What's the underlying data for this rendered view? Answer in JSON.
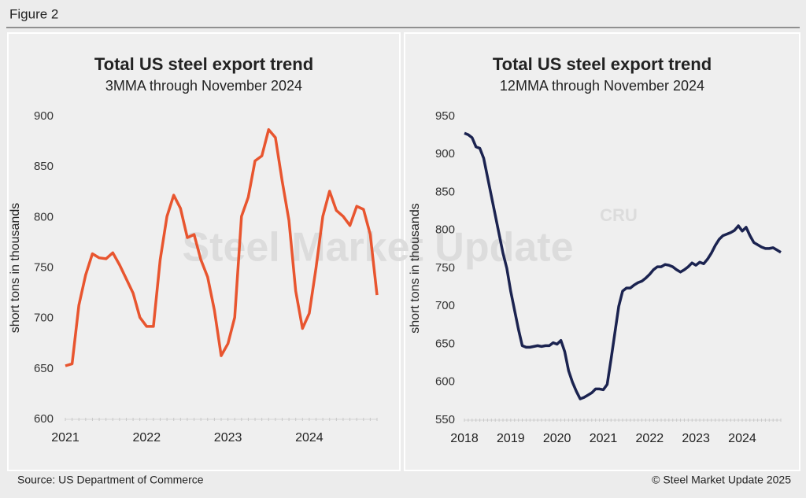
{
  "figure_label": "Figure 2",
  "source": "Source: US Department of Commerce",
  "copyright": "© Steel Market Update 2025",
  "chart_data": [
    {
      "type": "line",
      "title": "Total US steel export trend",
      "subtitle": "3MMA through November 2024",
      "y_label": "short tons in thousands",
      "watermark": "Steel Market Update",
      "color": "#e8552f",
      "categories": [
        "2021",
        null,
        null,
        null,
        null,
        null,
        null,
        null,
        null,
        null,
        null,
        null,
        "2022",
        null,
        null,
        null,
        null,
        null,
        null,
        null,
        null,
        null,
        null,
        null,
        "2023",
        null,
        null,
        null,
        null,
        null,
        null,
        null,
        null,
        null,
        null,
        null,
        "2024",
        null,
        null,
        null,
        null,
        null,
        null,
        null,
        null,
        null,
        null
      ],
      "values": [
        653,
        655,
        713,
        743,
        764,
        760,
        759,
        765,
        753,
        739,
        725,
        701,
        692,
        692,
        758,
        801,
        822,
        809,
        780,
        783,
        758,
        741,
        708,
        663,
        675,
        701,
        801,
        820,
        856,
        861,
        887,
        879,
        836,
        797,
        727,
        690,
        705,
        750,
        801,
        826,
        807,
        801,
        792,
        811,
        808,
        783,
        723
      ],
      "ylim": [
        600,
        900
      ],
      "yticks": [
        600,
        650,
        700,
        750,
        800,
        850,
        900
      ]
    },
    {
      "type": "line",
      "title": "Total US steel export trend",
      "subtitle": "12MMA through November 2024",
      "y_label": "short tons in thousands",
      "watermark": "CRU",
      "color": "#1b2350",
      "categories": [
        "2018",
        null,
        null,
        null,
        null,
        null,
        null,
        null,
        null,
        null,
        null,
        null,
        "2019",
        null,
        null,
        null,
        null,
        null,
        null,
        null,
        null,
        null,
        null,
        null,
        "2020",
        null,
        null,
        null,
        null,
        null,
        null,
        null,
        null,
        null,
        null,
        null,
        "2021",
        null,
        null,
        null,
        null,
        null,
        null,
        null,
        null,
        null,
        null,
        null,
        "2022",
        null,
        null,
        null,
        null,
        null,
        null,
        null,
        null,
        null,
        null,
        null,
        "2023",
        null,
        null,
        null,
        null,
        null,
        null,
        null,
        null,
        null,
        null,
        null,
        "2024",
        null,
        null,
        null,
        null,
        null,
        null,
        null,
        null,
        null,
        null
      ],
      "values": [
        928,
        926,
        922,
        910,
        908,
        895,
        870,
        845,
        820,
        795,
        770,
        750,
        720,
        695,
        670,
        648,
        646,
        646,
        647,
        648,
        647,
        648,
        648,
        652,
        650,
        655,
        640,
        615,
        600,
        588,
        578,
        580,
        583,
        586,
        591,
        591,
        590,
        597,
        630,
        665,
        700,
        720,
        724,
        724,
        728,
        731,
        733,
        737,
        742,
        748,
        752,
        752,
        755,
        754,
        752,
        748,
        745,
        748,
        752,
        757,
        754,
        758,
        756,
        762,
        770,
        780,
        788,
        793,
        795,
        797,
        800,
        806,
        799,
        804,
        793,
        784,
        781,
        778,
        776,
        776,
        777,
        774,
        771
      ],
      "ylim": [
        550,
        950
      ],
      "yticks": [
        550,
        600,
        650,
        700,
        750,
        800,
        850,
        900,
        950
      ]
    }
  ]
}
